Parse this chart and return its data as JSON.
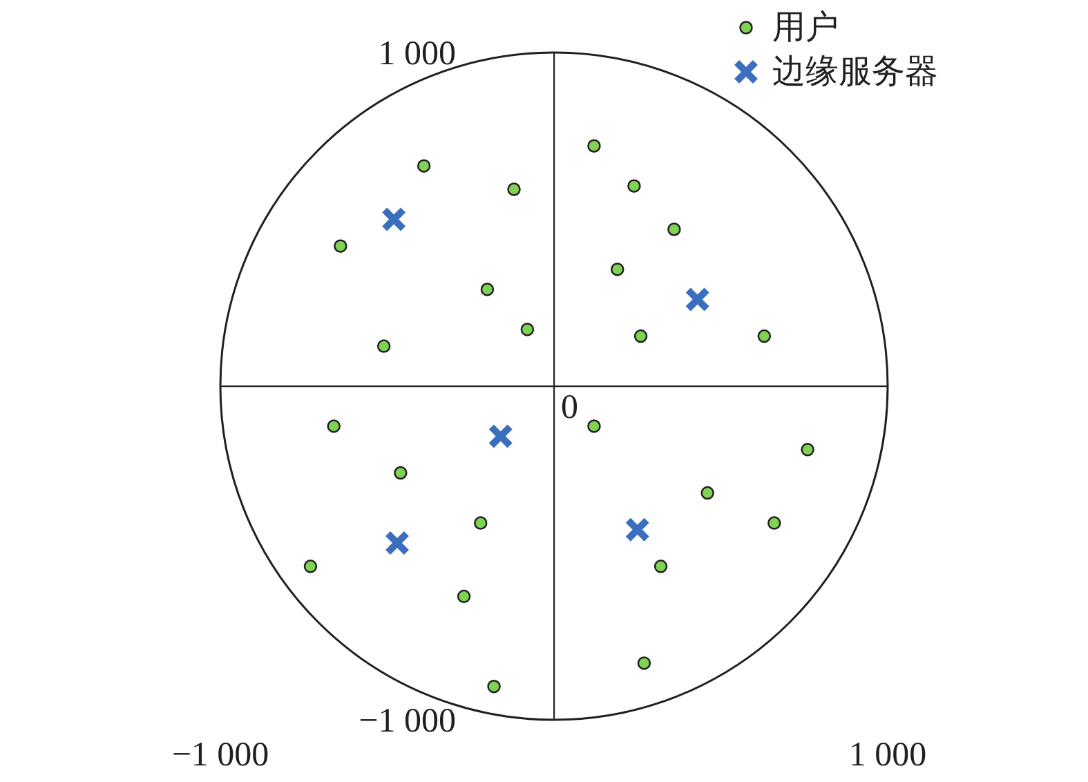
{
  "chart_data": {
    "type": "scatter",
    "xlim": [
      -1000,
      1000
    ],
    "ylim": [
      -1000,
      1000
    ],
    "xticks": [
      {
        "value": -1000,
        "label": "−1 000"
      },
      {
        "value": 1000,
        "label": "1 000"
      }
    ],
    "yticks": [
      {
        "value": -1000,
        "label": "−1 000"
      },
      {
        "value": 1000,
        "label": "1 000"
      }
    ],
    "grid": false,
    "legend": "top right",
    "annotations": [
      "0"
    ],
    "series": [
      {
        "name": "用户",
        "color": "#7ed254",
        "marker": "circle",
        "x": [
          120,
          240,
          360,
          190,
          260,
          630,
          -390,
          -120,
          -640,
          -200,
          -80,
          -510,
          -660,
          -460,
          -220,
          -730,
          -270,
          -180,
          120,
          760,
          460,
          660,
          320,
          270
        ],
        "values": [
          720,
          600,
          470,
          350,
          150,
          150,
          660,
          590,
          420,
          290,
          170,
          120,
          -120,
          -260,
          -410,
          -540,
          -630,
          -900,
          -120,
          -190,
          -320,
          -410,
          -540,
          -830
        ]
      },
      {
        "name": "边缘服务器",
        "color": "#3c6ebe",
        "marker": "cross",
        "x": [
          -480,
          430,
          -160,
          -470,
          250
        ],
        "values": [
          500,
          260,
          -150,
          -470,
          -430
        ]
      }
    ]
  }
}
